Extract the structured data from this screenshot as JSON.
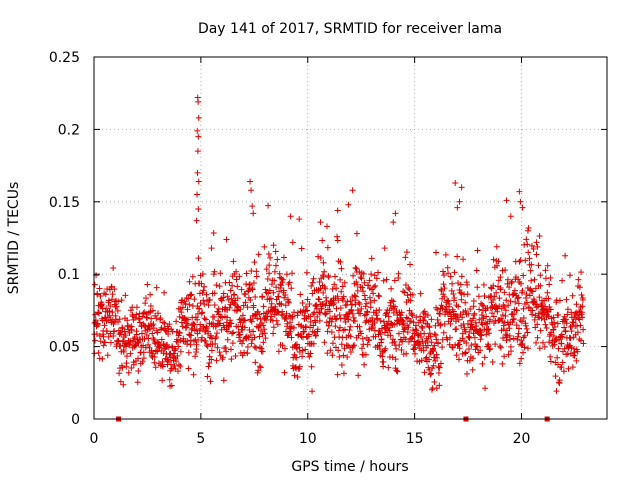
{
  "chart_data": {
    "type": "scatter",
    "title": "Day 141 of 2017, SRMTID for receiver lama",
    "xlabel": "GPS time / hours",
    "ylabel": "SRMTID / TECUs",
    "xlim": [
      0,
      24
    ],
    "ylim": [
      0,
      0.25
    ],
    "x_ticks": [
      0,
      5,
      10,
      15,
      20
    ],
    "x_tick_labels": [
      "0",
      "5",
      "10",
      "15",
      "20"
    ],
    "y_ticks": [
      0,
      0.05,
      0.1,
      0.15,
      0.2,
      0.25
    ],
    "y_tick_labels": [
      "0",
      "0.05",
      "0.1",
      "0.15",
      "0.2",
      "0.25"
    ],
    "grid": true,
    "marker": "+",
    "color": "#e00000",
    "x_data_end": 22.9,
    "baseline_markers_x": [
      1.15,
      17.4,
      21.2
    ],
    "series_profile": [
      {
        "x": 0.0,
        "mean": 0.062,
        "spread": 0.016
      },
      {
        "x": 1.0,
        "mean": 0.062,
        "spread": 0.018
      },
      {
        "x": 2.0,
        "mean": 0.058,
        "spread": 0.016
      },
      {
        "x": 3.0,
        "mean": 0.055,
        "spread": 0.016
      },
      {
        "x": 4.0,
        "mean": 0.052,
        "spread": 0.016
      },
      {
        "x": 5.0,
        "mean": 0.066,
        "spread": 0.02
      },
      {
        "x": 6.0,
        "mean": 0.07,
        "spread": 0.02
      },
      {
        "x": 7.0,
        "mean": 0.068,
        "spread": 0.02
      },
      {
        "x": 8.0,
        "mean": 0.078,
        "spread": 0.02
      },
      {
        "x": 9.0,
        "mean": 0.072,
        "spread": 0.022
      },
      {
        "x": 10.0,
        "mean": 0.066,
        "spread": 0.02
      },
      {
        "x": 11.0,
        "mean": 0.072,
        "spread": 0.022
      },
      {
        "x": 12.0,
        "mean": 0.073,
        "spread": 0.022
      },
      {
        "x": 13.0,
        "mean": 0.068,
        "spread": 0.02
      },
      {
        "x": 14.0,
        "mean": 0.064,
        "spread": 0.02
      },
      {
        "x": 15.0,
        "mean": 0.058,
        "spread": 0.016
      },
      {
        "x": 16.0,
        "mean": 0.06,
        "spread": 0.018
      },
      {
        "x": 17.0,
        "mean": 0.068,
        "spread": 0.02
      },
      {
        "x": 18.0,
        "mean": 0.066,
        "spread": 0.02
      },
      {
        "x": 19.0,
        "mean": 0.07,
        "spread": 0.022
      },
      {
        "x": 20.0,
        "mean": 0.085,
        "spread": 0.024
      },
      {
        "x": 21.0,
        "mean": 0.068,
        "spread": 0.02
      },
      {
        "x": 22.0,
        "mean": 0.06,
        "spread": 0.018
      },
      {
        "x": 22.9,
        "mean": 0.058,
        "spread": 0.016
      }
    ],
    "spikes": [
      {
        "x": 4.85,
        "y": 0.222
      },
      {
        "x": 4.87,
        "y": 0.219
      },
      {
        "x": 4.9,
        "y": 0.208
      },
      {
        "x": 4.83,
        "y": 0.199
      },
      {
        "x": 4.88,
        "y": 0.195
      },
      {
        "x": 4.86,
        "y": 0.185
      },
      {
        "x": 4.84,
        "y": 0.17
      },
      {
        "x": 4.9,
        "y": 0.164
      },
      {
        "x": 4.82,
        "y": 0.155
      },
      {
        "x": 4.88,
        "y": 0.145
      },
      {
        "x": 4.8,
        "y": 0.137
      },
      {
        "x": 7.3,
        "y": 0.164
      },
      {
        "x": 7.35,
        "y": 0.158
      },
      {
        "x": 7.4,
        "y": 0.147
      },
      {
        "x": 7.45,
        "y": 0.142
      },
      {
        "x": 9.2,
        "y": 0.14
      },
      {
        "x": 9.6,
        "y": 0.138
      },
      {
        "x": 10.6,
        "y": 0.136
      },
      {
        "x": 11.4,
        "y": 0.144
      },
      {
        "x": 11.9,
        "y": 0.148
      },
      {
        "x": 12.1,
        "y": 0.158
      },
      {
        "x": 14.1,
        "y": 0.142
      },
      {
        "x": 14.0,
        "y": 0.136
      },
      {
        "x": 16.9,
        "y": 0.163
      },
      {
        "x": 17.2,
        "y": 0.16
      },
      {
        "x": 17.1,
        "y": 0.15
      },
      {
        "x": 17.0,
        "y": 0.146
      },
      {
        "x": 19.3,
        "y": 0.151
      },
      {
        "x": 19.9,
        "y": 0.157
      },
      {
        "x": 19.95,
        "y": 0.15
      },
      {
        "x": 20.05,
        "y": 0.146
      },
      {
        "x": 19.5,
        "y": 0.14
      },
      {
        "x": 20.3,
        "y": 0.13
      },
      {
        "x": 20.7,
        "y": 0.122
      },
      {
        "x": 9.3,
        "y": 0.122
      },
      {
        "x": 12.3,
        "y": 0.128
      },
      {
        "x": 6.2,
        "y": 0.124
      },
      {
        "x": 5.5,
        "y": 0.118
      },
      {
        "x": 8.4,
        "y": 0.12
      },
      {
        "x": 13.6,
        "y": 0.118
      },
      {
        "x": 16.0,
        "y": 0.115
      }
    ]
  }
}
